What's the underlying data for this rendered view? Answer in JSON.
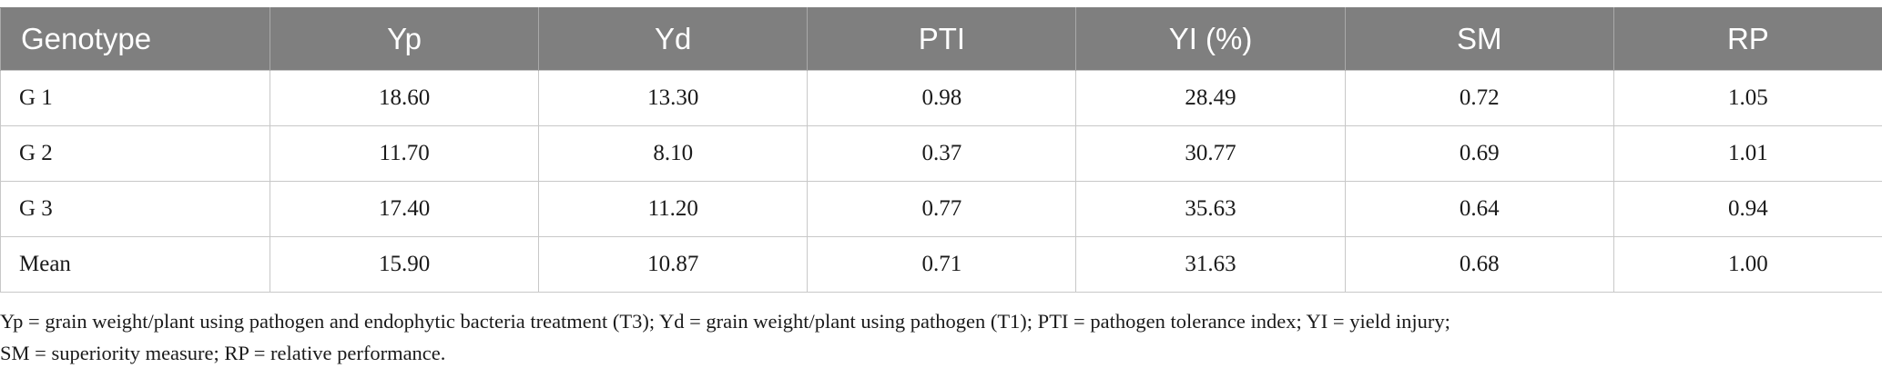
{
  "table": {
    "headers": [
      "Genotype",
      "Yp",
      "Yd",
      "PTI",
      "YI (%)",
      "SM",
      "RP"
    ],
    "rows": [
      [
        "G 1",
        "18.60",
        "13.30",
        "0.98",
        "28.49",
        "0.72",
        "1.05"
      ],
      [
        "G 2",
        "11.70",
        "8.10",
        "0.37",
        "30.77",
        "0.69",
        "1.01"
      ],
      [
        "G 3",
        "17.40",
        "11.20",
        "0.77",
        "35.63",
        "0.64",
        "0.94"
      ],
      [
        "Mean",
        "15.90",
        "10.87",
        "0.71",
        "31.63",
        "0.68",
        "1.00"
      ]
    ]
  },
  "footnote": {
    "line1": "Yp = grain weight/plant using pathogen and endophytic bacteria treatment (T3); Yd = grain weight/plant using pathogen (T1); PTI = pathogen tolerance index; YI = yield injury;",
    "line2": "SM = superiority measure; RP = relative performance."
  },
  "colors": {
    "header_bg": "#7f7f7f",
    "header_text": "#ffffff",
    "grid": "#c8c8c8"
  }
}
